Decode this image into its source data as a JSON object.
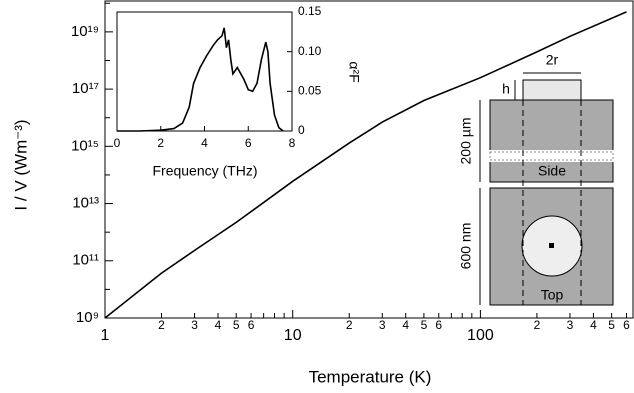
{
  "chart_data": [
    {
      "type": "line",
      "xlabel": "Temperature (K)",
      "ylabel": "I / V  (Wm⁻³)",
      "xlog": true,
      "ylog": true,
      "xlim": [
        1,
        650
      ],
      "ylim": [
        1000000000.0,
        1.2e+20
      ],
      "xticks": [
        1,
        10,
        100,
        {
          "value": 2,
          "label": "2"
        },
        {
          "value": 3,
          "label": "3"
        },
        {
          "value": 4,
          "label": "4"
        },
        {
          "value": 5,
          "label": "5"
        },
        {
          "value": 6,
          "label": "6"
        },
        {
          "value": 20,
          "label": "2"
        },
        {
          "value": 30,
          "label": "3"
        },
        {
          "value": 40,
          "label": "4"
        },
        {
          "value": 50,
          "label": "5"
        },
        {
          "value": 60,
          "label": "6"
        },
        {
          "value": 200,
          "label": "2"
        },
        {
          "value": 300,
          "label": "3"
        },
        {
          "value": 400,
          "label": "4"
        },
        {
          "value": 500,
          "label": "5"
        },
        {
          "value": 600,
          "label": "6"
        }
      ],
      "xminor": [
        7,
        8,
        9,
        70,
        80,
        90
      ],
      "yticks": [
        {
          "value": 1000000000.0,
          "label": "10⁹"
        },
        {
          "value": 100000000000.0,
          "label": "10¹¹"
        },
        {
          "value": 10000000000000.0,
          "label": "10¹³"
        },
        {
          "value": 1000000000000000.0,
          "label": "10¹⁵"
        },
        {
          "value": 1e+17,
          "label": "10¹⁷"
        },
        {
          "value": 1e+19,
          "label": "10¹⁹"
        }
      ],
      "yminor": [
        10000000000.0,
        1000000000000.0,
        100000000000000.0,
        1e+16,
        1e+18,
        1e+20
      ],
      "series": [
        {
          "color": "#000000",
          "x": [
            1,
            2,
            3,
            5,
            10,
            20,
            30,
            50,
            100,
            200,
            300,
            600
          ],
          "values": [
            1000000000.0,
            37000000000.0,
            230000000000.0,
            2200000000000.0,
            60000000000000.0,
            1300000000000000.0,
            7000000000000000.0,
            4e+16,
            2.5e+17,
            2e+18,
            7e+18,
            5e+19
          ]
        }
      ],
      "annotations": [
        "2r",
        "h",
        "200 µm",
        "Side",
        "600 nm",
        "Top"
      ]
    },
    {
      "type": "line",
      "xlabel": "Frequency (THz)",
      "ylabel": "α²F",
      "xlim": [
        0,
        8
      ],
      "ylim": [
        0,
        0.15
      ],
      "xticks": [
        0,
        2,
        4,
        6,
        8
      ],
      "yticks": [
        0,
        0.05,
        {
          "value": 0.1,
          "label": "0.10"
        },
        0.15
      ],
      "series": [
        {
          "color": "#000000",
          "x": [
            0,
            1,
            2,
            2.6,
            3,
            3.3,
            3.5,
            3.8,
            4.1,
            4.4,
            4.6,
            4.8,
            4.9,
            5.0,
            5.1,
            5.2,
            5.3,
            5.5,
            5.8,
            6.0,
            6.2,
            6.4,
            6.6,
            6.8,
            6.9,
            7.0,
            7.2,
            7.4,
            7.6
          ],
          "values": [
            0,
            0,
            0.001,
            0.003,
            0.01,
            0.03,
            0.06,
            0.08,
            0.095,
            0.108,
            0.115,
            0.12,
            0.13,
            0.105,
            0.115,
            0.09,
            0.072,
            0.08,
            0.065,
            0.052,
            0.05,
            0.06,
            0.09,
            0.112,
            0.1,
            0.06,
            0.02,
            0.004,
            0
          ]
        }
      ]
    }
  ]
}
